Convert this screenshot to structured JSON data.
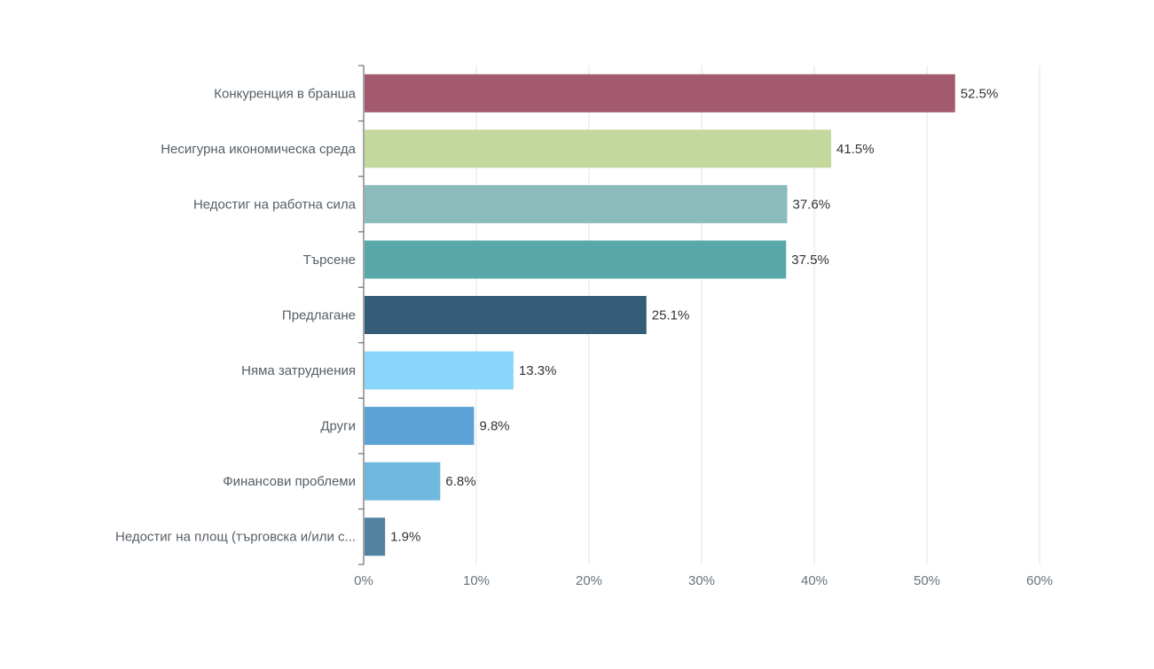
{
  "chart_data": {
    "type": "bar",
    "orientation": "horizontal",
    "categories": [
      "Конкуренция в бранша",
      "Несигурна икономическа среда",
      "Недостиг на работна сила",
      "Търсене",
      "Предлагане",
      "Няма затруднения",
      "Други",
      "Финансови проблеми",
      "Недостиг на площ (търговска и/или с..."
    ],
    "values": [
      52.5,
      41.5,
      37.6,
      37.5,
      25.1,
      13.3,
      9.8,
      6.8,
      1.9
    ],
    "value_labels": [
      "52.5%",
      "41.5%",
      "37.6%",
      "37.5%",
      "25.1%",
      "13.3%",
      "9.8%",
      "6.8%",
      "1.9%"
    ],
    "colors": [
      "#a3596e",
      "#c4d89d",
      "#8abcbb",
      "#59a8a9",
      "#365d78",
      "#89d6fb",
      "#5ba3d6",
      "#70b9de",
      "#5382a1"
    ],
    "xlim": [
      0,
      60
    ],
    "x_ticks": [
      "0%",
      "10%",
      "20%",
      "30%",
      "40%",
      "50%",
      "60%"
    ],
    "x_tick_values": [
      0,
      10,
      20,
      30,
      40,
      50,
      60
    ],
    "grid": "vertical",
    "title": "",
    "xlabel": "",
    "ylabel": ""
  }
}
